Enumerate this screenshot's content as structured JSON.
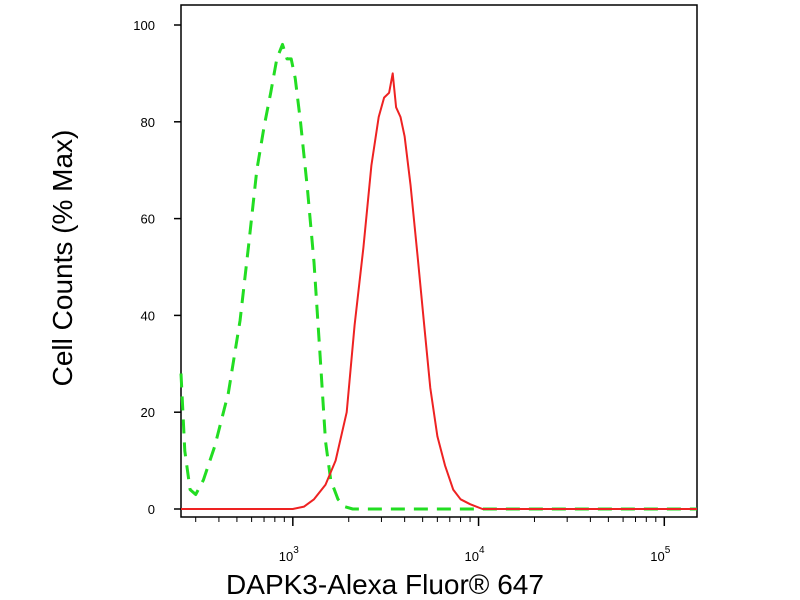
{
  "chart_data": {
    "type": "line",
    "xlabel": "DAPK3-Alexa Fluor® 647",
    "ylabel": "Cell Counts (% Max)",
    "x_scale": "log",
    "xlim": [
      250,
      150000
    ],
    "ylim": [
      0,
      100
    ],
    "x_ticks": [
      {
        "base": "10",
        "exp": "3",
        "value": 1000
      },
      {
        "base": "10",
        "exp": "4",
        "value": 10000
      },
      {
        "base": "10",
        "exp": "5",
        "value": 100000
      }
    ],
    "y_ticks": [
      {
        "label": "0",
        "value": 0
      },
      {
        "label": "20",
        "value": 20
      },
      {
        "label": "40",
        "value": 40
      },
      {
        "label": "60",
        "value": 60
      },
      {
        "label": "80",
        "value": 80
      },
      {
        "label": "100",
        "value": 100
      }
    ],
    "grid": false,
    "series": [
      {
        "color": "#22dd22",
        "dash": "dashed",
        "points": [
          [
            250,
            28
          ],
          [
            262,
            12
          ],
          [
            280,
            4
          ],
          [
            300,
            3
          ],
          [
            330,
            6
          ],
          [
            380,
            13
          ],
          [
            450,
            24
          ],
          [
            520,
            39
          ],
          [
            580,
            55
          ],
          [
            640,
            70
          ],
          [
            700,
            79
          ],
          [
            760,
            86
          ],
          [
            820,
            93
          ],
          [
            880,
            96
          ],
          [
            930,
            93
          ],
          [
            980,
            93
          ],
          [
            1030,
            89
          ],
          [
            1100,
            80
          ],
          [
            1200,
            66
          ],
          [
            1300,
            51
          ],
          [
            1400,
            32
          ],
          [
            1500,
            14
          ],
          [
            1600,
            6
          ],
          [
            1750,
            2
          ],
          [
            1900,
            0.5
          ],
          [
            2100,
            0
          ],
          [
            150000,
            0
          ]
        ]
      },
      {
        "color": "#ee2222",
        "dash": "solid",
        "points": [
          [
            250,
            0
          ],
          [
            1000,
            0
          ],
          [
            1150,
            0.5
          ],
          [
            1300,
            2
          ],
          [
            1500,
            5
          ],
          [
            1700,
            10
          ],
          [
            1950,
            20
          ],
          [
            2150,
            38
          ],
          [
            2400,
            54
          ],
          [
            2650,
            71
          ],
          [
            2900,
            81
          ],
          [
            3100,
            85
          ],
          [
            3300,
            86
          ],
          [
            3450,
            90
          ],
          [
            3600,
            83
          ],
          [
            3800,
            81
          ],
          [
            4000,
            77
          ],
          [
            4300,
            67
          ],
          [
            4700,
            52
          ],
          [
            5100,
            38
          ],
          [
            5500,
            25
          ],
          [
            6000,
            15
          ],
          [
            6600,
            9
          ],
          [
            7300,
            4
          ],
          [
            8000,
            2
          ],
          [
            9000,
            1
          ],
          [
            10500,
            0
          ],
          [
            150000,
            0
          ]
        ]
      }
    ]
  }
}
